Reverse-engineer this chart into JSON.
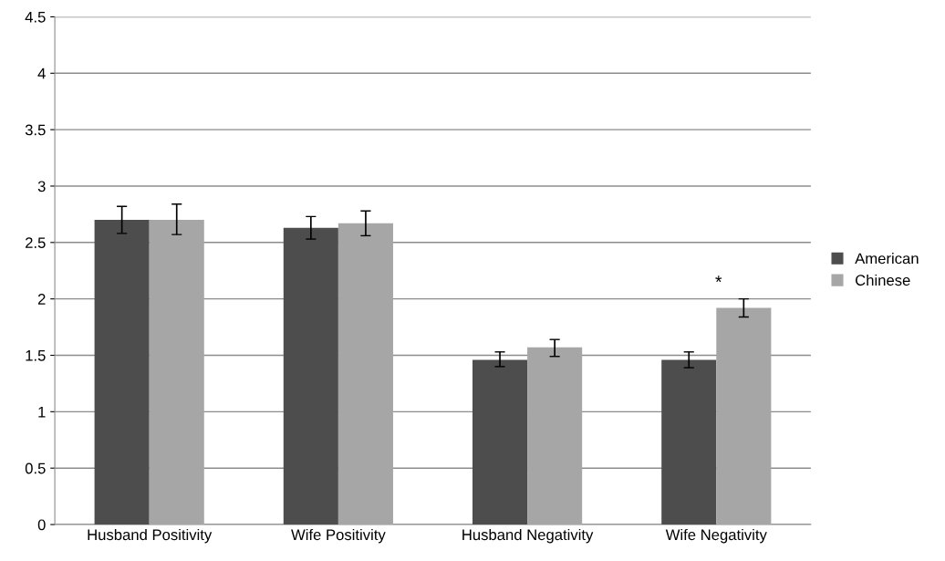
{
  "chart_data": {
    "type": "bar",
    "categories": [
      "Husband Positivity",
      "Wife Positivity",
      "Husband Negativity",
      "Wife Negativity"
    ],
    "series": [
      {
        "name": "American",
        "color": "#4d4d4d",
        "values": [
          2.7,
          2.63,
          1.46,
          1.46
        ],
        "errors": [
          [
            2.58,
            2.82
          ],
          [
            2.53,
            2.73
          ],
          [
            1.4,
            1.53
          ],
          [
            1.39,
            1.53
          ]
        ]
      },
      {
        "name": "Chinese",
        "color": "#a6a6a6",
        "values": [
          2.7,
          2.67,
          1.57,
          1.92
        ],
        "errors": [
          [
            2.57,
            2.84
          ],
          [
            2.56,
            2.78
          ],
          [
            1.49,
            1.64
          ],
          [
            1.84,
            2.0
          ]
        ]
      }
    ],
    "ylim": [
      0,
      4.5
    ],
    "yticks": [
      0,
      {
        "value": 0.5,
        "label": "0.5"
      },
      1,
      {
        "value": 1.5,
        "label": "1.5"
      },
      2,
      {
        "value": 2.5,
        "label": "2.5"
      },
      3,
      {
        "value": 3.5,
        "label": "3.5"
      },
      4,
      {
        "value": 4.5,
        "label": "4.5"
      }
    ],
    "grid": "y",
    "legend": "right",
    "annotations": [
      "*"
    ]
  }
}
